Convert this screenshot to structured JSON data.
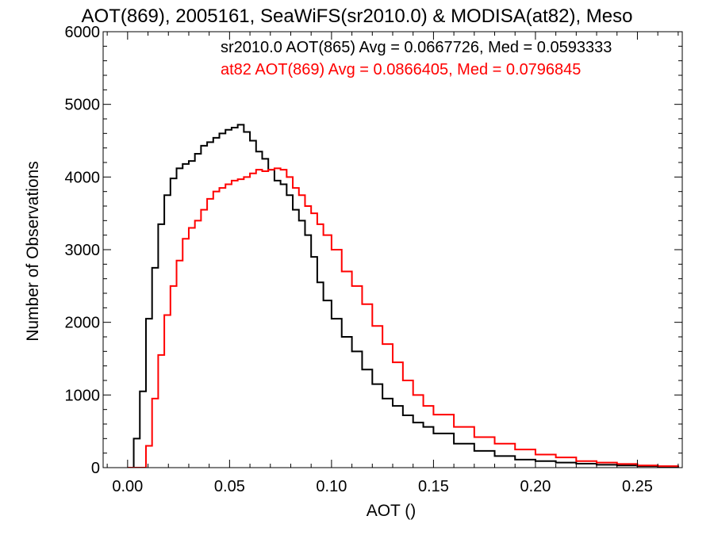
{
  "chart_data": {
    "type": "line",
    "title": "AOT(869), 2005161, SeaWiFS(sr2010.0) & MODISA(at82), Meso",
    "xlabel": "AOT ()",
    "ylabel": "Number of Observations",
    "xlim": [
      -0.012,
      0.272
    ],
    "ylim": [
      0,
      6000
    ],
    "x_ticks": [
      0.0,
      0.05,
      0.1,
      0.15,
      0.2,
      0.25
    ],
    "x_tick_labels": [
      "0.00",
      "0.05",
      "0.10",
      "0.15",
      "0.20",
      "0.25"
    ],
    "y_ticks": [
      0,
      1000,
      2000,
      3000,
      4000,
      5000,
      6000
    ],
    "y_tick_labels": [
      "0",
      "1000",
      "2000",
      "3000",
      "4000",
      "5000",
      "6000"
    ],
    "grid": false,
    "series": [
      {
        "name": "sr2010.0",
        "color": "#000000",
        "legend": "sr2010.0 AOT(865) Avg = 0.0667726, Med = 0.0593333",
        "x": [
          0.0,
          0.003,
          0.006,
          0.009,
          0.012,
          0.015,
          0.018,
          0.021,
          0.024,
          0.027,
          0.03,
          0.033,
          0.036,
          0.039,
          0.042,
          0.045,
          0.048,
          0.051,
          0.054,
          0.057,
          0.06,
          0.063,
          0.066,
          0.069,
          0.072,
          0.075,
          0.078,
          0.081,
          0.084,
          0.087,
          0.09,
          0.093,
          0.096,
          0.1,
          0.105,
          0.11,
          0.115,
          0.12,
          0.125,
          0.13,
          0.135,
          0.14,
          0.145,
          0.15,
          0.16,
          0.17,
          0.18,
          0.19,
          0.2,
          0.21,
          0.22,
          0.23,
          0.24,
          0.25,
          0.26,
          0.27
        ],
        "y": [
          0,
          400,
          1050,
          2050,
          2750,
          3350,
          3750,
          3980,
          4120,
          4180,
          4220,
          4320,
          4430,
          4480,
          4540,
          4600,
          4650,
          4680,
          4720,
          4620,
          4500,
          4350,
          4250,
          4100,
          3950,
          3900,
          3750,
          3550,
          3400,
          3200,
          2900,
          2550,
          2300,
          2050,
          1800,
          1600,
          1350,
          1150,
          950,
          850,
          720,
          620,
          560,
          470,
          330,
          230,
          160,
          110,
          90,
          70,
          55,
          40,
          30,
          20,
          10,
          5
        ]
      },
      {
        "name": "at82",
        "color": "#ff0000",
        "legend": "at82 AOT(869) Avg = 0.0866405, Med = 0.0796845",
        "x": [
          0.0,
          0.006,
          0.009,
          0.012,
          0.015,
          0.018,
          0.021,
          0.024,
          0.027,
          0.03,
          0.033,
          0.036,
          0.039,
          0.042,
          0.045,
          0.048,
          0.051,
          0.054,
          0.057,
          0.06,
          0.063,
          0.066,
          0.069,
          0.072,
          0.075,
          0.078,
          0.081,
          0.084,
          0.087,
          0.09,
          0.093,
          0.096,
          0.1,
          0.105,
          0.11,
          0.115,
          0.12,
          0.125,
          0.13,
          0.135,
          0.14,
          0.145,
          0.15,
          0.16,
          0.17,
          0.18,
          0.19,
          0.2,
          0.21,
          0.22,
          0.23,
          0.24,
          0.25,
          0.26,
          0.27
        ],
        "y": [
          0,
          0,
          300,
          950,
          1550,
          2100,
          2500,
          2850,
          3150,
          3300,
          3400,
          3550,
          3700,
          3800,
          3850,
          3900,
          3950,
          3970,
          4000,
          4050,
          4100,
          4080,
          4100,
          4120,
          4100,
          4000,
          3850,
          3750,
          3600,
          3500,
          3350,
          3200,
          3000,
          2700,
          2500,
          2250,
          1950,
          1700,
          1450,
          1200,
          1000,
          850,
          730,
          560,
          420,
          330,
          250,
          180,
          140,
          90,
          70,
          50,
          30,
          20,
          10
        ]
      }
    ]
  }
}
